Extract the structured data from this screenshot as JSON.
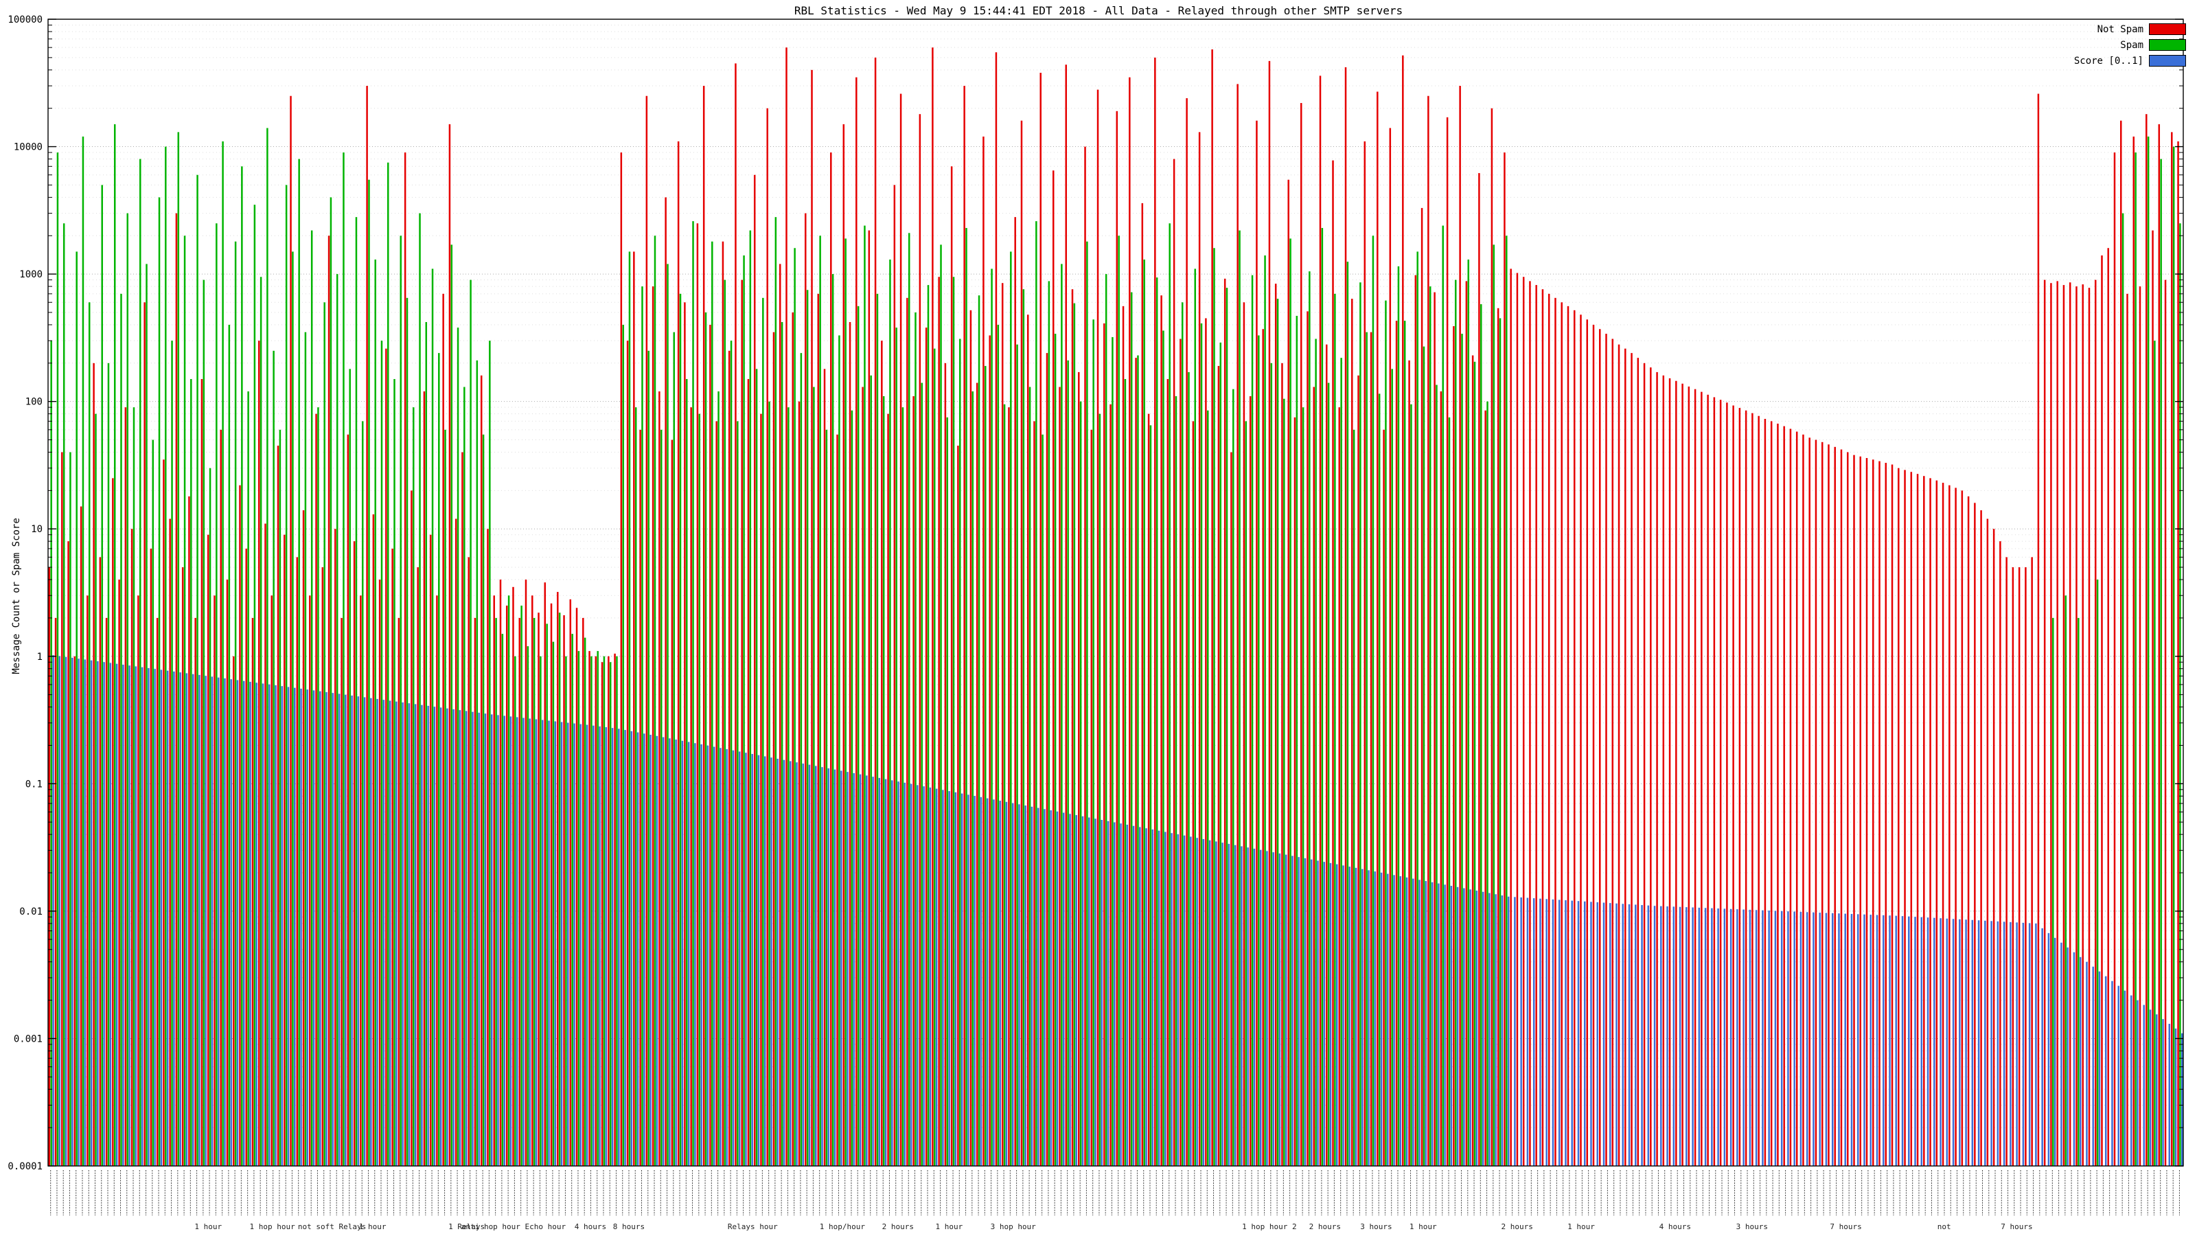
{
  "page": {
    "title": "RBL Statistics - Wed May  9 15:44:41 EDT 2018 - All Data - Relayed through other SMTP servers"
  },
  "chart_data": {
    "type": "bar",
    "title": "RBL Statistics - Wed May  9 15:44:41 EDT 2018 - All Data - Relayed through other SMTP servers",
    "ylabel": "Message Count or Spam Score",
    "xlabel": "",
    "yscale": "log",
    "ylim": [
      0.0001,
      100000
    ],
    "grid": true,
    "legend_position": "top-right",
    "ytick_values": [
      100000,
      10000,
      1000,
      100,
      10,
      1,
      0.1,
      0.01,
      0.001,
      0.0001
    ],
    "ytick_labels": [
      "100000",
      "10000",
      "1000",
      "100",
      "10",
      "1",
      "0.1",
      "0.01",
      "0.001",
      "0.0001"
    ],
    "x_tick_labels_legible": false,
    "x_axis_sublabels": [
      {
        "pos": 0.075,
        "label": "1 hour"
      },
      {
        "pos": 0.105,
        "label": "1 hop hour"
      },
      {
        "pos": 0.133,
        "label": "not soft Relays"
      },
      {
        "pos": 0.152,
        "label": "1 hour"
      },
      {
        "pos": 0.196,
        "label": "1 Relays"
      },
      {
        "pos": 0.218,
        "label": "anti hop hour Echo hour"
      },
      {
        "pos": 0.254,
        "label": "4 hours"
      },
      {
        "pos": 0.272,
        "label": "8 hours"
      },
      {
        "pos": 0.33,
        "label": "Relays hour"
      },
      {
        "pos": 0.372,
        "label": "1 hop/hour"
      },
      {
        "pos": 0.398,
        "label": "2 hours"
      },
      {
        "pos": 0.422,
        "label": "1 hour"
      },
      {
        "pos": 0.452,
        "label": "3 hop hour"
      },
      {
        "pos": 0.572,
        "label": "1 hop hour 2"
      },
      {
        "pos": 0.598,
        "label": "2 hours"
      },
      {
        "pos": 0.622,
        "label": "3 hours"
      },
      {
        "pos": 0.644,
        "label": "1 hour"
      },
      {
        "pos": 0.688,
        "label": "2 hours"
      },
      {
        "pos": 0.718,
        "label": "1 hour"
      },
      {
        "pos": 0.762,
        "label": "4 hours"
      },
      {
        "pos": 0.798,
        "label": "3 hours"
      },
      {
        "pos": 0.842,
        "label": "7 hours"
      },
      {
        "pos": 0.888,
        "label": "not"
      },
      {
        "pos": 0.922,
        "label": "7 hours"
      }
    ],
    "legend": [
      {
        "label": "Not Spam",
        "color": "#e60000"
      },
      {
        "label": "Spam",
        "color": "#00b400"
      },
      {
        "label": "Score [0..1]",
        "color": "#3a6fd8"
      }
    ],
    "n_groups": 336,
    "series": {
      "not_spam": [
        5,
        2,
        40,
        8,
        1,
        15,
        3,
        200,
        6,
        2,
        25,
        4,
        90,
        10,
        3,
        600,
        7,
        2,
        35,
        12,
        3000,
        5,
        18,
        2,
        150,
        9,
        3,
        60,
        4,
        1,
        22,
        7,
        2,
        300,
        11,
        3,
        45,
        9,
        25000,
        6,
        14,
        3,
        80,
        5,
        2000,
        10,
        2,
        55,
        8,
        3,
        30000,
        13,
        4,
        260,
        7,
        2,
        9000,
        20,
        5,
        120,
        9,
        3,
        700,
        15000,
        12,
        40,
        6,
        2,
        160,
        10,
        3,
        4,
        2.5,
        3.5,
        2,
        4,
        3,
        2.2,
        3.8,
        2.6,
        3.2,
        2.1,
        2.8,
        2.4,
        2,
        1.1,
        1,
        0.9,
        1,
        1.05,
        9000,
        300,
        1500,
        60,
        25000,
        800,
        120,
        4000,
        50,
        11000,
        600,
        90,
        2500,
        30000,
        400,
        70,
        1800,
        250,
        45000,
        900,
        150,
        6000,
        80,
        20000,
        350,
        1200,
        60000,
        500,
        100,
        3000,
        40000,
        700,
        180,
        9000,
        55,
        15000,
        420,
        35000,
        130,
        2200,
        50000,
        300,
        80,
        5000,
        26000,
        650,
        110,
        18000,
        380,
        60000,
        950,
        200,
        7000,
        45,
        30000,
        520,
        140,
        12000,
        330,
        55000,
        850,
        90,
        2800,
        16000,
        480,
        70,
        38000,
        240,
        6500,
        130,
        44000,
        760,
        170,
        10000,
        60,
        28000,
        410,
        95,
        19000,
        560,
        35000,
        220,
        3600,
        80,
        50000,
        680,
        150,
        8000,
        310,
        24000,
        70,
        13000,
        450,
        58000,
        190,
        920,
        40,
        31000,
        600,
        110,
        16000,
        370,
        47000,
        840,
        200,
        5500,
        75,
        22000,
        510,
        130,
        36000,
        280,
        7800,
        90,
        42000,
        640,
        160,
        11000,
        350,
        27000,
        60,
        14000,
        430,
        52000,
        210,
        980,
        3300,
        25000,
        720,
        120,
        17000,
        390,
        30000,
        880,
        230,
        6200,
        85,
        20000,
        540,
        9000,
        1100,
        1020,
        950,
        880,
        820,
        760,
        700,
        650,
        600,
        560,
        520,
        480,
        440,
        400,
        370,
        340,
        310,
        280,
        260,
        240,
        220,
        200,
        185,
        170,
        160,
        152,
        145,
        138,
        131,
        125,
        119,
        113,
        108,
        103,
        98,
        93,
        89,
        85,
        81,
        77,
        73,
        70,
        67,
        64,
        61,
        58,
        55,
        52,
        50,
        48,
        46,
        44,
        42,
        40,
        38,
        37,
        36,
        35,
        34,
        33,
        32,
        30,
        29,
        28,
        27,
        26,
        25,
        24,
        23,
        22,
        21,
        20,
        18,
        16,
        14,
        12,
        10,
        8,
        6,
        5,
        5,
        5,
        6,
        26000,
        900,
        850,
        880,
        820,
        860,
        800,
        830,
        780,
        900,
        1400,
        1600,
        9000,
        16000,
        700,
        12000,
        800,
        18000,
        2200,
        15000,
        900,
        13000,
        11000
      ],
      "spam": [
        300,
        9000,
        2500,
        40,
        1500,
        12000,
        600,
        80,
        5000,
        200,
        15000,
        700,
        3000,
        90,
        8000,
        1200,
        50,
        4000,
        10000,
        300,
        13000,
        2000,
        150,
        6000,
        900,
        30,
        2500,
        11000,
        400,
        1800,
        7000,
        120,
        3500,
        950,
        14000,
        250,
        60,
        5000,
        1500,
        8000,
        350,
        2200,
        90,
        600,
        4000,
        1000,
        9000,
        180,
        2800,
        70,
        5500,
        1300,
        300,
        7500,
        150,
        2000,
        650,
        90,
        3000,
        420,
        1100,
        240,
        60,
        1700,
        380,
        130,
        900,
        210,
        55,
        300,
        2,
        1.5,
        3,
        1,
        2.5,
        1.2,
        2,
        1,
        1.8,
        1.3,
        2.2,
        1,
        1.5,
        1.1,
        1.4,
        1,
        1.1,
        1,
        0.9,
        1,
        400,
        1500,
        90,
        800,
        250,
        2000,
        60,
        1200,
        350,
        700,
        150,
        2600,
        80,
        500,
        1800,
        120,
        900,
        300,
        70,
        1400,
        2200,
        180,
        650,
        100,
        2800,
        420,
        90,
        1600,
        240,
        750,
        130,
        2000,
        60,
        1000,
        330,
        1900,
        85,
        560,
        2400,
        160,
        700,
        110,
        1300,
        380,
        90,
        2100,
        500,
        140,
        820,
        260,
        1700,
        75,
        950,
        310,
        2300,
        120,
        680,
        190,
        1100,
        400,
        95,
        1500,
        280,
        760,
        130,
        2600,
        55,
        880,
        340,
        1200,
        210,
        590,
        100,
        1800,
        440,
        80,
        1000,
        320,
        2000,
        150,
        720,
        230,
        1300,
        65,
        940,
        360,
        2500,
        110,
        600,
        170,
        1100,
        410,
        85,
        1600,
        290,
        780,
        125,
        2200,
        70,
        980,
        330,
        1400,
        200,
        640,
        105,
        1900,
        470,
        90,
        1050,
        310,
        2300,
        140,
        700,
        220,
        1250,
        60,
        860,
        350,
        2000,
        115,
        620,
        180,
        1150,
        430,
        95,
        1500,
        270,
        800,
        135,
        2400,
        75,
        900,
        340,
        1300,
        205,
        580,
        100,
        1700,
        450,
        2000,
        0,
        0,
        0,
        0,
        0,
        0,
        0,
        0,
        0,
        0,
        0,
        0,
        0,
        0,
        0,
        0,
        0,
        0,
        0,
        0,
        0,
        0,
        0,
        0,
        0,
        0,
        0,
        0,
        0,
        0,
        0,
        0,
        0,
        0,
        0,
        0,
        0,
        0,
        0,
        0,
        0,
        0,
        0,
        0,
        0,
        0,
        0,
        0,
        0,
        0,
        0,
        0,
        0,
        0,
        0,
        0,
        0,
        0,
        0,
        0,
        0,
        0,
        0,
        0,
        0,
        0,
        0,
        0,
        0,
        0,
        0,
        0,
        0,
        0,
        0,
        0,
        0,
        0,
        0,
        0,
        0,
        0,
        0,
        0,
        0,
        2,
        0,
        3,
        0,
        2,
        0,
        0,
        4,
        0,
        0,
        0,
        3000,
        0,
        9000,
        0,
        12000,
        300,
        8000,
        0,
        10000,
        2500
      ],
      "score_breakpoints": [
        [
          0,
          1.02
        ],
        [
          69,
          0.35
        ],
        [
          84,
          0.29
        ],
        [
          89,
          0.27
        ],
        [
          229,
          0.013
        ],
        [
          252,
          0.011
        ],
        [
          290,
          0.0092
        ],
        [
          312,
          0.008
        ],
        [
          320,
          0.004
        ],
        [
          328,
          0.002
        ],
        [
          335,
          0.0011
        ]
      ]
    }
  }
}
